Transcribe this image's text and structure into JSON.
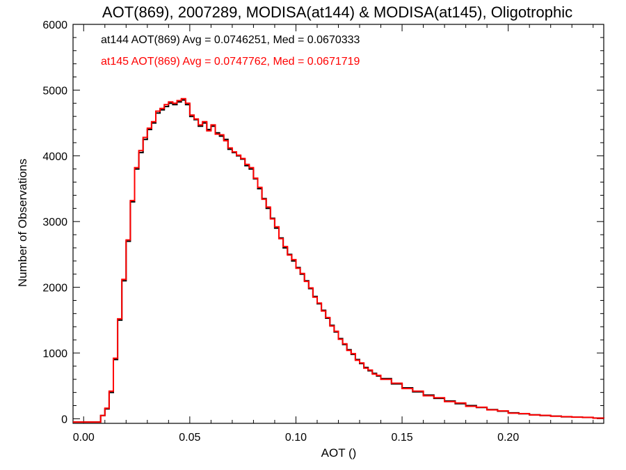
{
  "chart_data": {
    "type": "line",
    "title": "AOT(869), 2007289, MODISA(at144) & MODISA(at145), Oligotrophic",
    "xlabel": "AOT ()",
    "ylabel": "Number of Observations",
    "xlim": [
      -0.005,
      0.245
    ],
    "ylim": [
      -70,
      6000
    ],
    "x_ticks": [
      0.0,
      0.05,
      0.1,
      0.15,
      0.2
    ],
    "x_tick_labels": [
      "0.00",
      "0.05",
      "0.10",
      "0.15",
      "0.20"
    ],
    "y_ticks": [
      0,
      1000,
      2000,
      3000,
      4000,
      5000,
      6000
    ],
    "y_tick_labels": [
      "0",
      "1000",
      "2000",
      "3000",
      "4000",
      "5000",
      "6000"
    ],
    "step": "histogram",
    "annotations": [
      {
        "text": "at144 AOT(869) Avg = 0.0746251, Med = 0.0670333",
        "color": "#000000"
      },
      {
        "text": "at145 AOT(869) Avg = 0.0747762, Med = 0.0671719",
        "color": "#ff0000"
      }
    ],
    "series": [
      {
        "name": "at144",
        "color": "#000000",
        "x": [
          0.0,
          0.004,
          0.008,
          0.01,
          0.012,
          0.014,
          0.016,
          0.018,
          0.02,
          0.022,
          0.024,
          0.026,
          0.028,
          0.03,
          0.032,
          0.034,
          0.036,
          0.038,
          0.04,
          0.042,
          0.044,
          0.046,
          0.048,
          0.05,
          0.052,
          0.054,
          0.056,
          0.058,
          0.06,
          0.062,
          0.064,
          0.066,
          0.068,
          0.07,
          0.072,
          0.074,
          0.076,
          0.078,
          0.08,
          0.082,
          0.084,
          0.086,
          0.088,
          0.09,
          0.092,
          0.094,
          0.096,
          0.098,
          0.1,
          0.102,
          0.104,
          0.106,
          0.108,
          0.11,
          0.112,
          0.114,
          0.116,
          0.118,
          0.12,
          0.122,
          0.124,
          0.126,
          0.128,
          0.13,
          0.132,
          0.134,
          0.136,
          0.138,
          0.14,
          0.145,
          0.15,
          0.155,
          0.16,
          0.165,
          0.17,
          0.175,
          0.18,
          0.185,
          0.19,
          0.195,
          0.2,
          0.205,
          0.21,
          0.215,
          0.22,
          0.225,
          0.23,
          0.235,
          0.24,
          0.245
        ],
        "y": [
          -50,
          -50,
          50,
          150,
          400,
          900,
          1500,
          2100,
          2700,
          3300,
          3800,
          4050,
          4250,
          4400,
          4500,
          4650,
          4700,
          4750,
          4800,
          4780,
          4820,
          4850,
          4780,
          4600,
          4550,
          4450,
          4500,
          4400,
          4450,
          4350,
          4300,
          4250,
          4100,
          4050,
          4000,
          3950,
          3850,
          3800,
          3650,
          3500,
          3350,
          3200,
          3050,
          2900,
          2750,
          2600,
          2500,
          2400,
          2300,
          2200,
          2100,
          1980,
          1860,
          1750,
          1650,
          1530,
          1420,
          1320,
          1220,
          1130,
          1050,
          980,
          900,
          840,
          780,
          730,
          690,
          650,
          610,
          530,
          470,
          410,
          360,
          310,
          270,
          230,
          200,
          170,
          140,
          115,
          90,
          75,
          60,
          50,
          40,
          30,
          25,
          20,
          10,
          5
        ]
      },
      {
        "name": "at145",
        "color": "#ff0000",
        "x": [
          0.0,
          0.004,
          0.008,
          0.01,
          0.012,
          0.014,
          0.016,
          0.018,
          0.02,
          0.022,
          0.024,
          0.026,
          0.028,
          0.03,
          0.032,
          0.034,
          0.036,
          0.038,
          0.04,
          0.042,
          0.044,
          0.046,
          0.048,
          0.05,
          0.052,
          0.054,
          0.056,
          0.058,
          0.06,
          0.062,
          0.064,
          0.066,
          0.068,
          0.07,
          0.072,
          0.074,
          0.076,
          0.078,
          0.08,
          0.082,
          0.084,
          0.086,
          0.088,
          0.09,
          0.092,
          0.094,
          0.096,
          0.098,
          0.1,
          0.102,
          0.104,
          0.106,
          0.108,
          0.11,
          0.112,
          0.114,
          0.116,
          0.118,
          0.12,
          0.122,
          0.124,
          0.126,
          0.128,
          0.13,
          0.132,
          0.134,
          0.136,
          0.138,
          0.14,
          0.145,
          0.15,
          0.155,
          0.16,
          0.165,
          0.17,
          0.175,
          0.18,
          0.185,
          0.19,
          0.195,
          0.2,
          0.205,
          0.21,
          0.215,
          0.22,
          0.225,
          0.23,
          0.235,
          0.24,
          0.245
        ],
        "y": [
          -50,
          -50,
          50,
          160,
          420,
          920,
          1520,
          2120,
          2720,
          3320,
          3820,
          4080,
          4280,
          4420,
          4520,
          4680,
          4720,
          4780,
          4820,
          4800,
          4840,
          4870,
          4800,
          4620,
          4560,
          4470,
          4520,
          4380,
          4470,
          4330,
          4320,
          4230,
          4120,
          4060,
          4010,
          3960,
          3870,
          3820,
          3660,
          3520,
          3340,
          3220,
          3040,
          2920,
          2740,
          2620,
          2490,
          2420,
          2290,
          2210,
          2090,
          1990,
          1850,
          1760,
          1640,
          1540,
          1410,
          1330,
          1210,
          1140,
          1040,
          990,
          890,
          850,
          770,
          740,
          680,
          660,
          600,
          540,
          460,
          420,
          350,
          320,
          260,
          240,
          190,
          175,
          135,
          120,
          85,
          78,
          58,
          52,
          38,
          32,
          24,
          21,
          9,
          5
        ]
      }
    ]
  }
}
